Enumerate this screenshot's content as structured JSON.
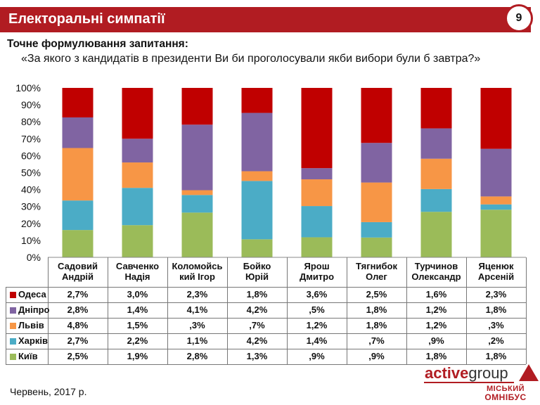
{
  "header": {
    "title": "Електоральні симпатії",
    "page_number": "9"
  },
  "question": {
    "label": "Точне формулювання запитання:",
    "text": "«За якого з кандидатів в президенти Ви би проголосували якби вибори були б завтра?»"
  },
  "footer": {
    "date": "Червень, 2017 р.",
    "logo_active": "active",
    "logo_group": "group",
    "logo_omnibus_line1": "МІСЬКИЙ",
    "logo_omnibus_line2": "ОМНІБУС"
  },
  "colors": {
    "accent": "#b11c22",
    "Одеса": "#c00000",
    "Дніпро": "#8064a2",
    "Львів": "#f79646",
    "Харків": "#4bacc6",
    "Київ": "#9bbb59"
  },
  "chart_data": {
    "type": "bar",
    "stacked": "100%",
    "ylim": [
      0,
      100
    ],
    "y_ticks": [
      "0%",
      "10%",
      "20%",
      "30%",
      "40%",
      "50%",
      "60%",
      "70%",
      "80%",
      "90%",
      "100%"
    ],
    "categories": [
      [
        "Садовий",
        "Андрій"
      ],
      [
        "Савченко",
        "Надія"
      ],
      [
        "Коломойсь",
        "кий Ігор"
      ],
      [
        "Бойко",
        "Юрій"
      ],
      [
        "Ярош",
        "Дмитро"
      ],
      [
        "Тягнибок",
        "Олег"
      ],
      [
        "Турчинов",
        "Олександр"
      ],
      [
        "Яценюк",
        "Арсеній"
      ]
    ],
    "series": [
      {
        "name": "Одеса",
        "values": [
          2.7,
          3.0,
          2.3,
          1.8,
          3.6,
          2.5,
          1.6,
          2.3
        ],
        "labels": [
          "2,7%",
          "3,0%",
          "2,3%",
          "1,8%",
          "3,6%",
          "2,5%",
          "1,6%",
          "2,3%"
        ]
      },
      {
        "name": "Дніпро",
        "values": [
          2.8,
          1.4,
          4.1,
          4.2,
          0.5,
          1.8,
          1.2,
          1.8
        ],
        "labels": [
          "2,8%",
          "1,4%",
          "4,1%",
          "4,2%",
          ",5%",
          "1,8%",
          "1,2%",
          "1,8%"
        ]
      },
      {
        "name": "Львів",
        "values": [
          4.8,
          1.5,
          0.3,
          0.7,
          1.2,
          1.8,
          1.2,
          0.3
        ],
        "labels": [
          "4,8%",
          "1,5%",
          ",3%",
          ",7%",
          "1,2%",
          "1,8%",
          "1,2%",
          ",3%"
        ]
      },
      {
        "name": "Харків",
        "values": [
          2.7,
          2.2,
          1.1,
          4.2,
          1.4,
          0.7,
          0.9,
          0.2
        ],
        "labels": [
          "2,7%",
          "2,2%",
          "1,1%",
          "4,2%",
          "1,4%",
          ",7%",
          ",9%",
          ",2%"
        ]
      },
      {
        "name": "Київ",
        "values": [
          2.5,
          1.9,
          2.8,
          1.3,
          0.9,
          0.9,
          1.8,
          1.8
        ],
        "labels": [
          "2,5%",
          "1,9%",
          "2,8%",
          "1,3%",
          ",9%",
          ",9%",
          "1,8%",
          "1,8%"
        ]
      }
    ]
  }
}
